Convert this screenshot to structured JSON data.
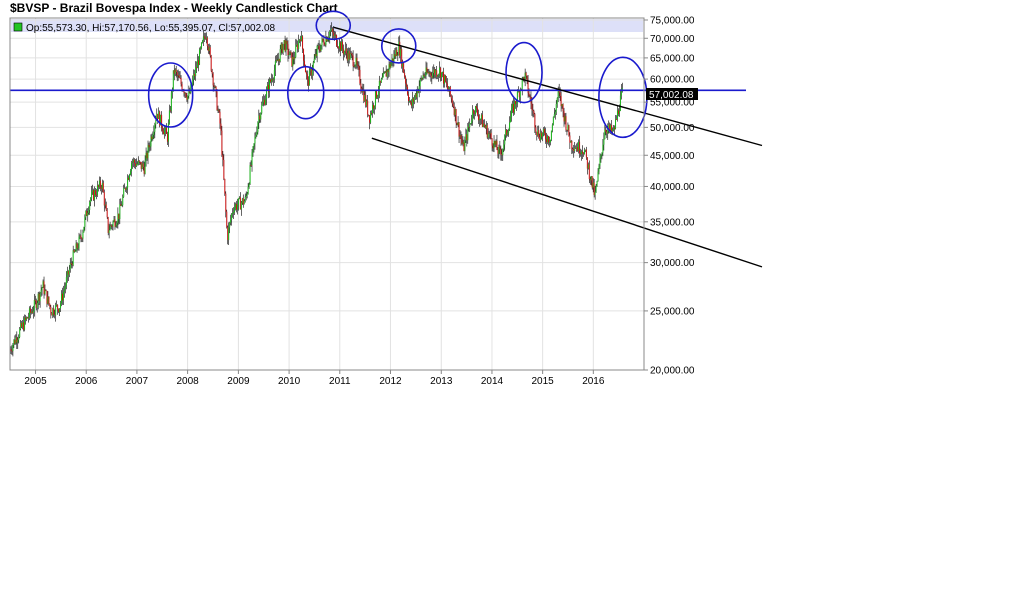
{
  "chart_data": {
    "type": "candlestick",
    "title": "$BVSP - Brazil Bovespa Index - Weekly Candlestick Chart",
    "legend": {
      "text": "Op:55,573.30, Hi:57,170.56, Lo:55,395.07, Cl:57,002.08",
      "swatch_color": "#22c422",
      "placement": "top-left"
    },
    "last_price_label": "57,002.08",
    "y_scale": "log",
    "ylim": [
      20000,
      75000
    ],
    "xlim": [
      "2004-07-01",
      "2016-12-31"
    ],
    "y_ticks": [
      "75,000.00",
      "70,000.00",
      "65,000.00",
      "60,000.00",
      "55,000.00",
      "50,000.00",
      "45,000.00",
      "40,000.00",
      "35,000.00",
      "30,000.00",
      "25,000.00",
      "20,000.00"
    ],
    "y_tick_values": [
      75000,
      70000,
      65000,
      60000,
      55000,
      50000,
      45000,
      40000,
      35000,
      30000,
      25000,
      20000
    ],
    "x_ticks": [
      "2005",
      "2006",
      "2007",
      "2008",
      "2009",
      "2010",
      "2011",
      "2012",
      "2013",
      "2014",
      "2015",
      "2016"
    ],
    "grid": true,
    "colors": {
      "up": "#18b818",
      "down": "#cc1111",
      "wick": "#000000",
      "horizontal_line": "#1a1acd",
      "channel_lines": "#000000",
      "circles": "#1a1acd",
      "highlight_band": "#dde0f8"
    },
    "price_path": [
      [
        "2004-07-01",
        21500
      ],
      [
        "2004-10-01",
        23500
      ],
      [
        "2005-01-01",
        25500
      ],
      [
        "2005-03-01",
        27500
      ],
      [
        "2005-05-01",
        25000
      ],
      [
        "2005-07-01",
        25500
      ],
      [
        "2005-10-01",
        30500
      ],
      [
        "2005-12-01",
        33000
      ],
      [
        "2006-02-01",
        38000
      ],
      [
        "2006-05-01",
        40500
      ],
      [
        "2006-06-15",
        34000
      ],
      [
        "2006-09-01",
        36000
      ],
      [
        "2006-12-01",
        44000
      ],
      [
        "2007-03-01",
        43000
      ],
      [
        "2007-06-01",
        53000
      ],
      [
        "2007-08-15",
        48000
      ],
      [
        "2007-10-01",
        62000
      ],
      [
        "2008-01-15",
        56000
      ],
      [
        "2008-05-20",
        72000
      ],
      [
        "2008-07-01",
        62000
      ],
      [
        "2008-09-01",
        50000
      ],
      [
        "2008-10-20",
        33000
      ],
      [
        "2008-12-01",
        37000
      ],
      [
        "2009-03-01",
        38000
      ],
      [
        "2009-06-01",
        52000
      ],
      [
        "2009-09-01",
        60000
      ],
      [
        "2009-12-01",
        69000
      ],
      [
        "2010-02-01",
        64000
      ],
      [
        "2010-04-01",
        71000
      ],
      [
        "2010-05-20",
        59000
      ],
      [
        "2010-08-01",
        67000
      ],
      [
        "2010-11-01",
        72000
      ],
      [
        "2011-02-01",
        67000
      ],
      [
        "2011-05-01",
        64000
      ],
      [
        "2011-08-10",
        52000
      ],
      [
        "2011-10-01",
        57000
      ],
      [
        "2012-03-10",
        68000
      ],
      [
        "2012-06-01",
        54000
      ],
      [
        "2012-09-01",
        61000
      ],
      [
        "2013-01-01",
        62000
      ],
      [
        "2013-04-01",
        55000
      ],
      [
        "2013-06-15",
        46000
      ],
      [
        "2013-09-01",
        54000
      ],
      [
        "2014-01-01",
        48000
      ],
      [
        "2014-03-10",
        45000
      ],
      [
        "2014-06-01",
        53000
      ],
      [
        "2014-09-01",
        61000
      ],
      [
        "2014-12-01",
        49000
      ],
      [
        "2015-03-01",
        48000
      ],
      [
        "2015-05-01",
        57000
      ],
      [
        "2015-08-01",
        47000
      ],
      [
        "2015-11-01",
        46000
      ],
      [
        "2016-01-20",
        38500
      ],
      [
        "2016-04-01",
        50000
      ],
      [
        "2016-06-01",
        49000
      ],
      [
        "2016-08-01",
        57000
      ]
    ],
    "annotations": {
      "horizontal_line_y": 57500,
      "channel_upper": [
        [
          "2010-11-15",
          73000
        ],
        [
          "2016-12-31",
          52800
        ]
      ],
      "channel_lower": [
        [
          "2011-08-20",
          48000
        ],
        [
          "2016-12-31",
          34200
        ]
      ],
      "circles": [
        [
          "2007-09-01",
          56500
        ],
        [
          "2010-05-01",
          57000
        ],
        [
          "2010-11-15",
          73500
        ],
        [
          "2012-03-01",
          68000
        ],
        [
          "2014-08-20",
          61500
        ],
        [
          "2016-08-01",
          56000
        ]
      ]
    }
  }
}
